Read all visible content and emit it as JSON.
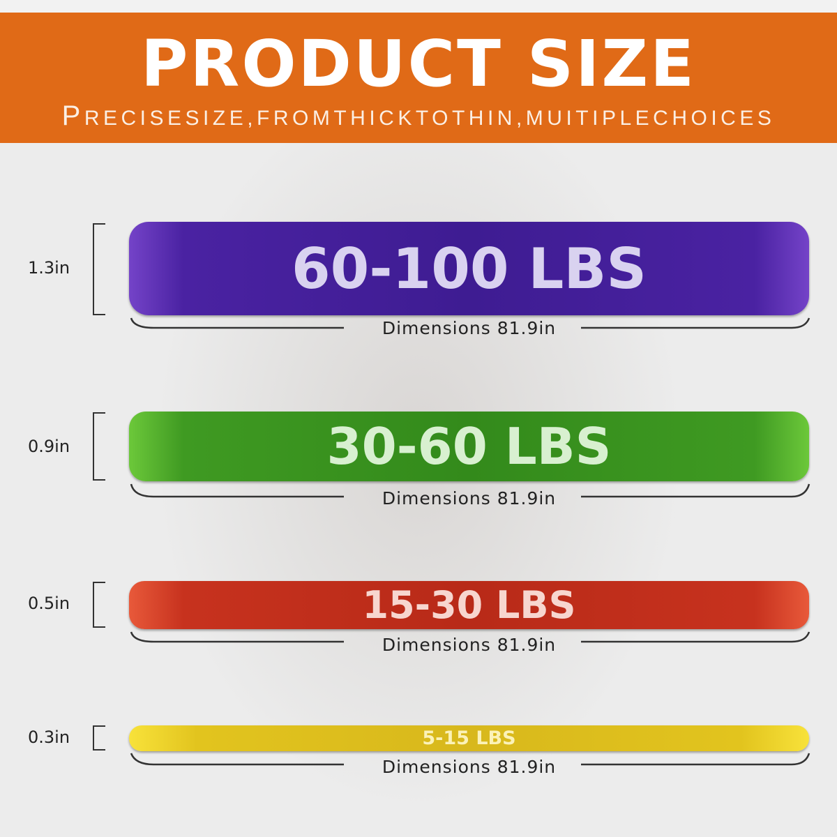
{
  "header": {
    "title": "PRODUCT SIZE",
    "subtitle_first": "P",
    "subtitle_rest": "RECISESIZE,FROMTHICKTOTHIN,MUITIPLECHOICES",
    "color": "#e06a17"
  },
  "bands": [
    {
      "resistance": "60-100 LBS",
      "thickness": "1.3in",
      "dimension": "Dimensions 81.9in",
      "color": "#4a24a0"
    },
    {
      "resistance": "30-60 LBS",
      "thickness": "0.9in",
      "dimension": "Dimensions 81.9in",
      "color": "#3f9a22"
    },
    {
      "resistance": "15-30 LBS",
      "thickness": "0.5in",
      "dimension": "Dimensions 81.9in",
      "color": "#c7321e"
    },
    {
      "resistance": "5-15 LBS",
      "thickness": "0.3in",
      "dimension": "Dimensions 81.9in",
      "color": "#e2c41e"
    }
  ]
}
